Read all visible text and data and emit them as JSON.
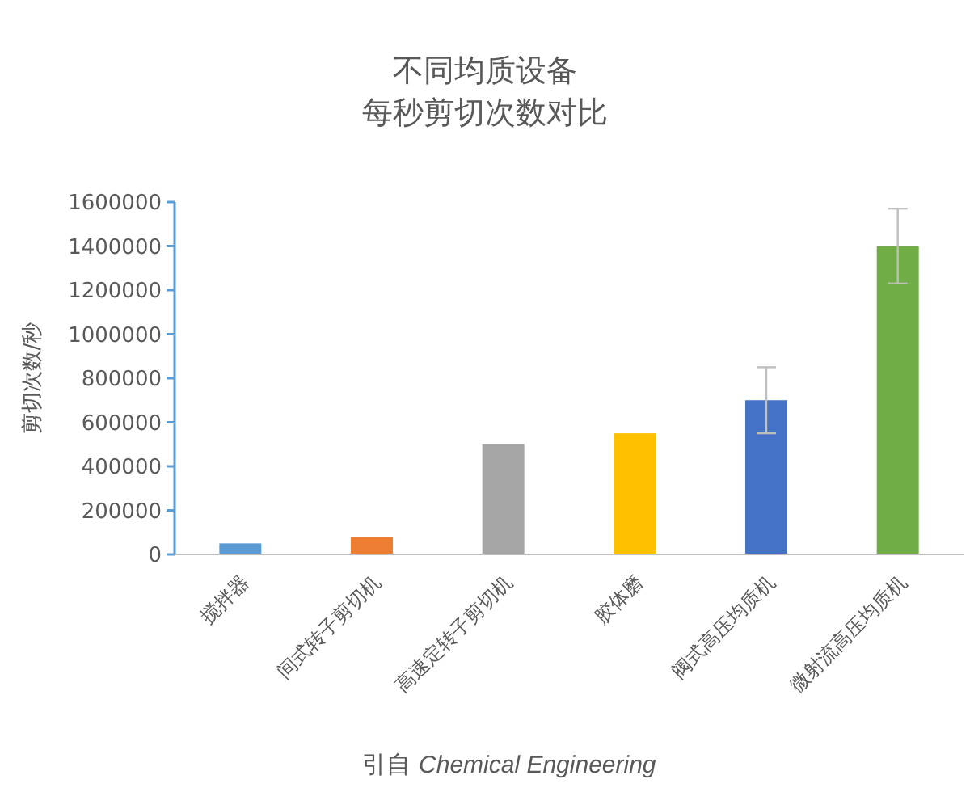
{
  "chart_data": {
    "type": "bar",
    "title": "不同均质设备",
    "subtitle": "每秒剪切次数对比",
    "ylabel": "剪切次数/秒",
    "categories": [
      "搅拌器",
      "间式转子剪切机",
      "高速定转子剪切机",
      "胶体磨",
      "阀式高压均质机",
      "微射流高压均质机"
    ],
    "values": [
      50000,
      80000,
      500000,
      550000,
      700000,
      1400000
    ],
    "colors": [
      "#5b9bd5",
      "#ed7d31",
      "#a5a5a5",
      "#ffc000",
      "#4472c4",
      "#70ad47"
    ],
    "errors": [
      null,
      null,
      null,
      null,
      150000,
      170000
    ],
    "ylim": [
      0,
      1600000
    ],
    "yticks": [
      0,
      200000,
      400000,
      600000,
      800000,
      1000000,
      1200000,
      1400000,
      1600000
    ],
    "annotations": [
      "引自 *Chemical Engineering*"
    ]
  }
}
